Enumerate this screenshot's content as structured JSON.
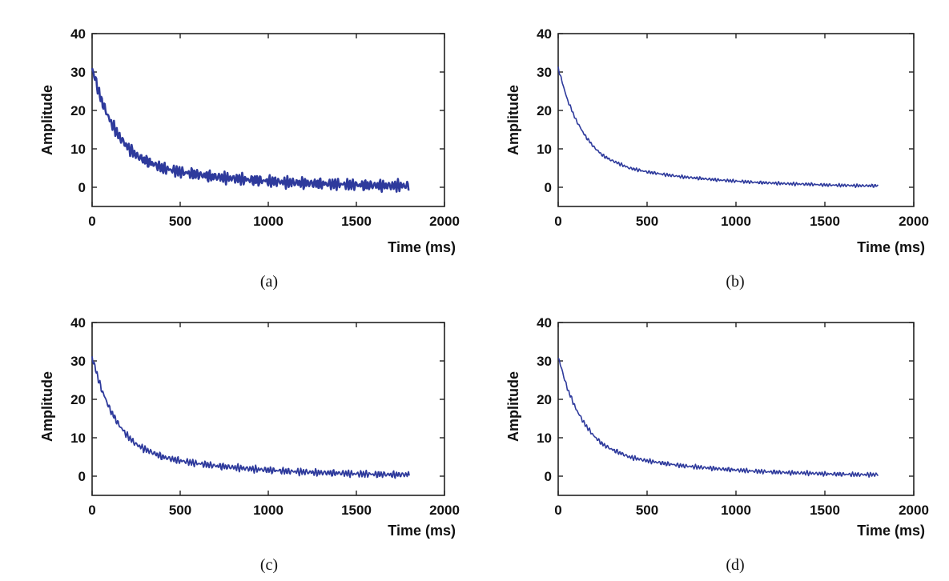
{
  "figure": {
    "colors": {
      "trace": "#2e3a9c",
      "axes": "#222222",
      "background": "#ffffff"
    },
    "panels": [
      {
        "caption": "(a)",
        "xlabel": "Time (ms)",
        "ylabel": "Amplitude"
      },
      {
        "caption": "(b)",
        "xlabel": "Time (ms)",
        "ylabel": "Amplitude"
      },
      {
        "caption": "(c)",
        "xlabel": "Time (ms)",
        "ylabel": "Amplitude"
      },
      {
        "caption": "(d)",
        "xlabel": "Time (ms)",
        "ylabel": "Amplitude"
      }
    ]
  },
  "chart_data": [
    {
      "type": "line",
      "panel": "(a)",
      "xlabel": "Time (ms)",
      "ylabel": "Amplitude",
      "xlim": [
        0,
        2000
      ],
      "ylim": [
        -5,
        40
      ],
      "xticks": [
        "0",
        "500",
        "1000",
        "1500",
        "2000"
      ],
      "yticks": [
        "0",
        "10",
        "20",
        "30",
        "40"
      ],
      "series": [
        {
          "name": "decay",
          "x": [
            0,
            50,
            100,
            150,
            200,
            250,
            300,
            400,
            500,
            600,
            700,
            800,
            900,
            1000,
            1100,
            1200,
            1300,
            1400,
            1500,
            1600,
            1700,
            1800
          ],
          "y": [
            31,
            23,
            17.5,
            13.5,
            10.5,
            8.3,
            7,
            5,
            4,
            3.3,
            2.7,
            2.3,
            1.9,
            1.6,
            1.3,
            1.1,
            0.9,
            0.8,
            0.6,
            0.5,
            0.4,
            0.4
          ]
        }
      ]
    },
    {
      "type": "line",
      "panel": "(b)",
      "xlabel": "Time (ms)",
      "ylabel": "Amplitude",
      "xlim": [
        0,
        2000
      ],
      "ylim": [
        -5,
        40
      ],
      "xticks": [
        "0",
        "500",
        "1000",
        "1500",
        "2000"
      ],
      "yticks": [
        "0",
        "10",
        "20",
        "30",
        "40"
      ],
      "series": [
        {
          "name": "decay",
          "x": [
            0,
            50,
            100,
            150,
            200,
            250,
            300,
            400,
            500,
            600,
            700,
            800,
            900,
            1000,
            1100,
            1200,
            1300,
            1400,
            1500,
            1600,
            1700,
            1800
          ],
          "y": [
            31,
            23,
            17.5,
            13.5,
            10.5,
            8.3,
            7,
            5,
            4,
            3.3,
            2.7,
            2.3,
            1.9,
            1.6,
            1.3,
            1.1,
            0.9,
            0.8,
            0.6,
            0.5,
            0.4,
            0.4
          ]
        }
      ]
    },
    {
      "type": "line",
      "panel": "(c)",
      "xlabel": "Time (ms)",
      "ylabel": "Amplitude",
      "xlim": [
        0,
        2000
      ],
      "ylim": [
        -5,
        40
      ],
      "xticks": [
        "0",
        "500",
        "1000",
        "1500",
        "2000"
      ],
      "yticks": [
        "0",
        "10",
        "20",
        "30",
        "40"
      ],
      "series": [
        {
          "name": "decay",
          "x": [
            0,
            50,
            100,
            150,
            200,
            250,
            300,
            400,
            500,
            600,
            700,
            800,
            900,
            1000,
            1100,
            1200,
            1300,
            1400,
            1500,
            1600,
            1700,
            1800
          ],
          "y": [
            31,
            23,
            17.5,
            13.5,
            10.5,
            8.3,
            7,
            5,
            4,
            3.3,
            2.7,
            2.3,
            1.9,
            1.6,
            1.3,
            1.1,
            0.9,
            0.8,
            0.6,
            0.5,
            0.4,
            0.4
          ]
        }
      ]
    },
    {
      "type": "line",
      "panel": "(d)",
      "xlabel": "Time (ms)",
      "ylabel": "Amplitude",
      "xlim": [
        0,
        2000
      ],
      "ylim": [
        -5,
        40
      ],
      "xticks": [
        "0",
        "500",
        "1000",
        "1500",
        "2000"
      ],
      "yticks": [
        "0",
        "10",
        "20",
        "30",
        "40"
      ],
      "series": [
        {
          "name": "decay",
          "x": [
            0,
            50,
            100,
            150,
            200,
            250,
            300,
            400,
            500,
            600,
            700,
            800,
            900,
            1000,
            1100,
            1200,
            1300,
            1400,
            1500,
            1600,
            1700,
            1800
          ],
          "y": [
            31,
            23,
            17.5,
            13.5,
            10.5,
            8.3,
            7,
            5,
            4,
            3.3,
            2.7,
            2.3,
            1.9,
            1.6,
            1.3,
            1.1,
            0.9,
            0.8,
            0.6,
            0.5,
            0.4,
            0.4
          ]
        }
      ]
    }
  ]
}
